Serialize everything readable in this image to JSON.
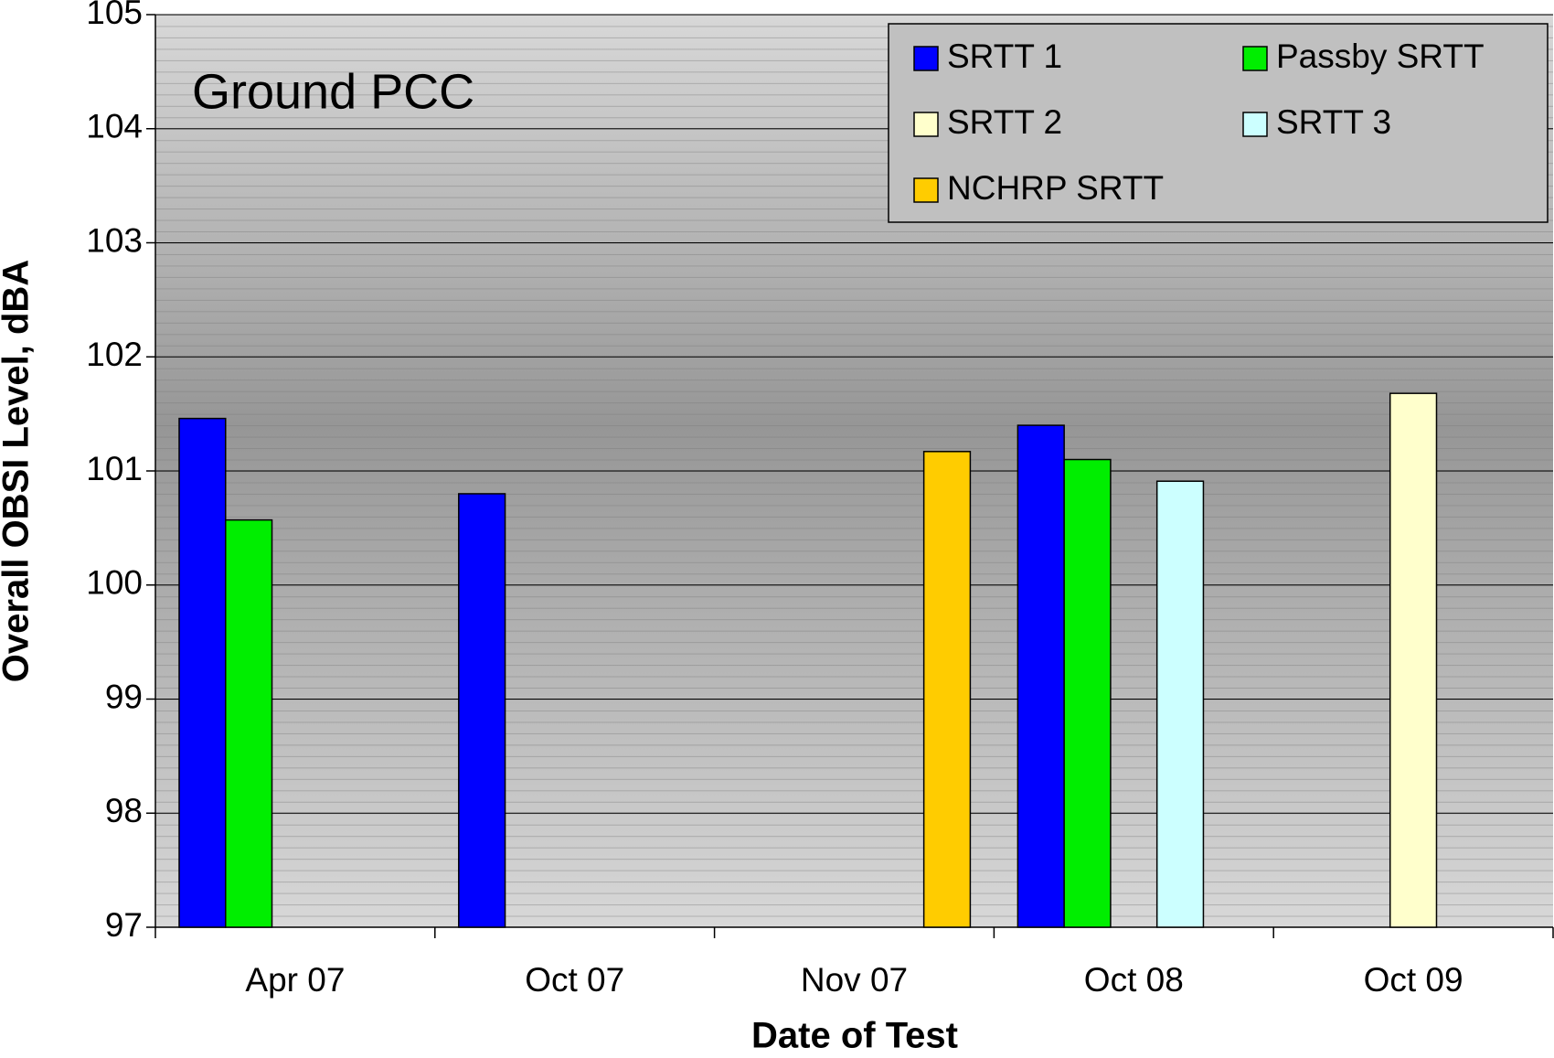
{
  "chart_data": {
    "type": "bar",
    "annotation": "Ground PCC",
    "x_label": "Date of Test",
    "y_label": "Overall OBSI Level, dBA",
    "categories": [
      "Apr 07",
      "Oct 07",
      "Nov 07",
      "Oct 08",
      "Oct 09"
    ],
    "series": [
      {
        "name": "SRTT 1",
        "color": "#0000ff",
        "values": [
          101.46,
          100.8,
          null,
          101.4,
          null
        ]
      },
      {
        "name": "Passby SRTT",
        "color": "#00ee00",
        "values": [
          100.57,
          null,
          null,
          101.1,
          null
        ]
      },
      {
        "name": "SRTT 2",
        "color": "#ffffcc",
        "values": [
          null,
          null,
          null,
          null,
          101.68
        ]
      },
      {
        "name": "SRTT 3",
        "color": "#ccffff",
        "values": [
          null,
          null,
          null,
          100.91,
          null
        ]
      },
      {
        "name": "NCHRP SRTT",
        "color": "#ffcc00",
        "values": [
          null,
          null,
          101.17,
          null,
          null
        ]
      }
    ],
    "ylim": [
      97,
      105
    ],
    "yticks": [
      97,
      98,
      99,
      100,
      101,
      102,
      103,
      104,
      105
    ],
    "grid": true,
    "legend": "upper right"
  }
}
